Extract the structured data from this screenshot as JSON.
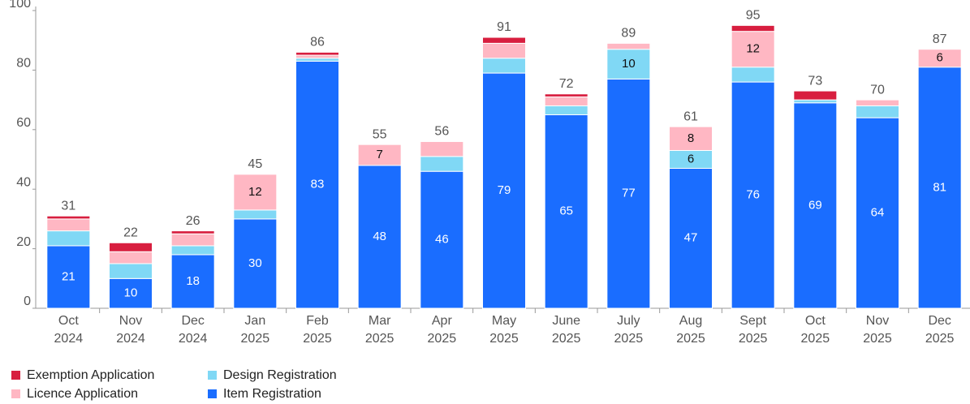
{
  "chart_data": {
    "type": "stacked_bar",
    "categories": [
      [
        "Oct",
        "2024"
      ],
      [
        "Nov",
        "2024"
      ],
      [
        "Dec",
        "2024"
      ],
      [
        "Jan",
        "2025"
      ],
      [
        "Feb",
        "2025"
      ],
      [
        "Mar",
        "2025"
      ],
      [
        "Apr",
        "2025"
      ],
      [
        "May",
        "2025"
      ],
      [
        "June",
        "2025"
      ],
      [
        "July",
        "2025"
      ],
      [
        "Aug",
        "2025"
      ],
      [
        "Sept",
        "2025"
      ],
      [
        "Oct",
        "2025"
      ],
      [
        "Nov",
        "2025"
      ],
      [
        "Dec",
        "2025"
      ]
    ],
    "series": [
      {
        "name": "Item Registration",
        "color": "#1a6dff",
        "values": [
          21,
          10,
          18,
          30,
          83,
          48,
          46,
          79,
          65,
          77,
          47,
          76,
          69,
          64,
          81
        ]
      },
      {
        "name": "Design Registration",
        "color": "#80d8f5",
        "values": [
          5,
          5,
          3,
          3,
          1,
          0,
          5,
          5,
          3,
          10,
          6,
          5,
          1,
          4,
          0
        ]
      },
      {
        "name": "Licence Application",
        "color": "#ffb7c3",
        "values": [
          4,
          4,
          4,
          12,
          1,
          7,
          5,
          5,
          3,
          2,
          8,
          12,
          0,
          2,
          6
        ]
      },
      {
        "name": "Exemption Application",
        "color": "#d81e3f",
        "values": [
          1,
          3,
          1,
          0,
          1,
          0,
          0,
          2,
          1,
          0,
          0,
          2,
          3,
          0,
          0
        ]
      }
    ],
    "total_labels": [
      31,
      22,
      26,
      45,
      86,
      55,
      56,
      91,
      72,
      89,
      61,
      95,
      73,
      70,
      87
    ],
    "ylim": [
      0,
      100
    ],
    "yticks": [
      0,
      20,
      40,
      60,
      80,
      100
    ]
  }
}
